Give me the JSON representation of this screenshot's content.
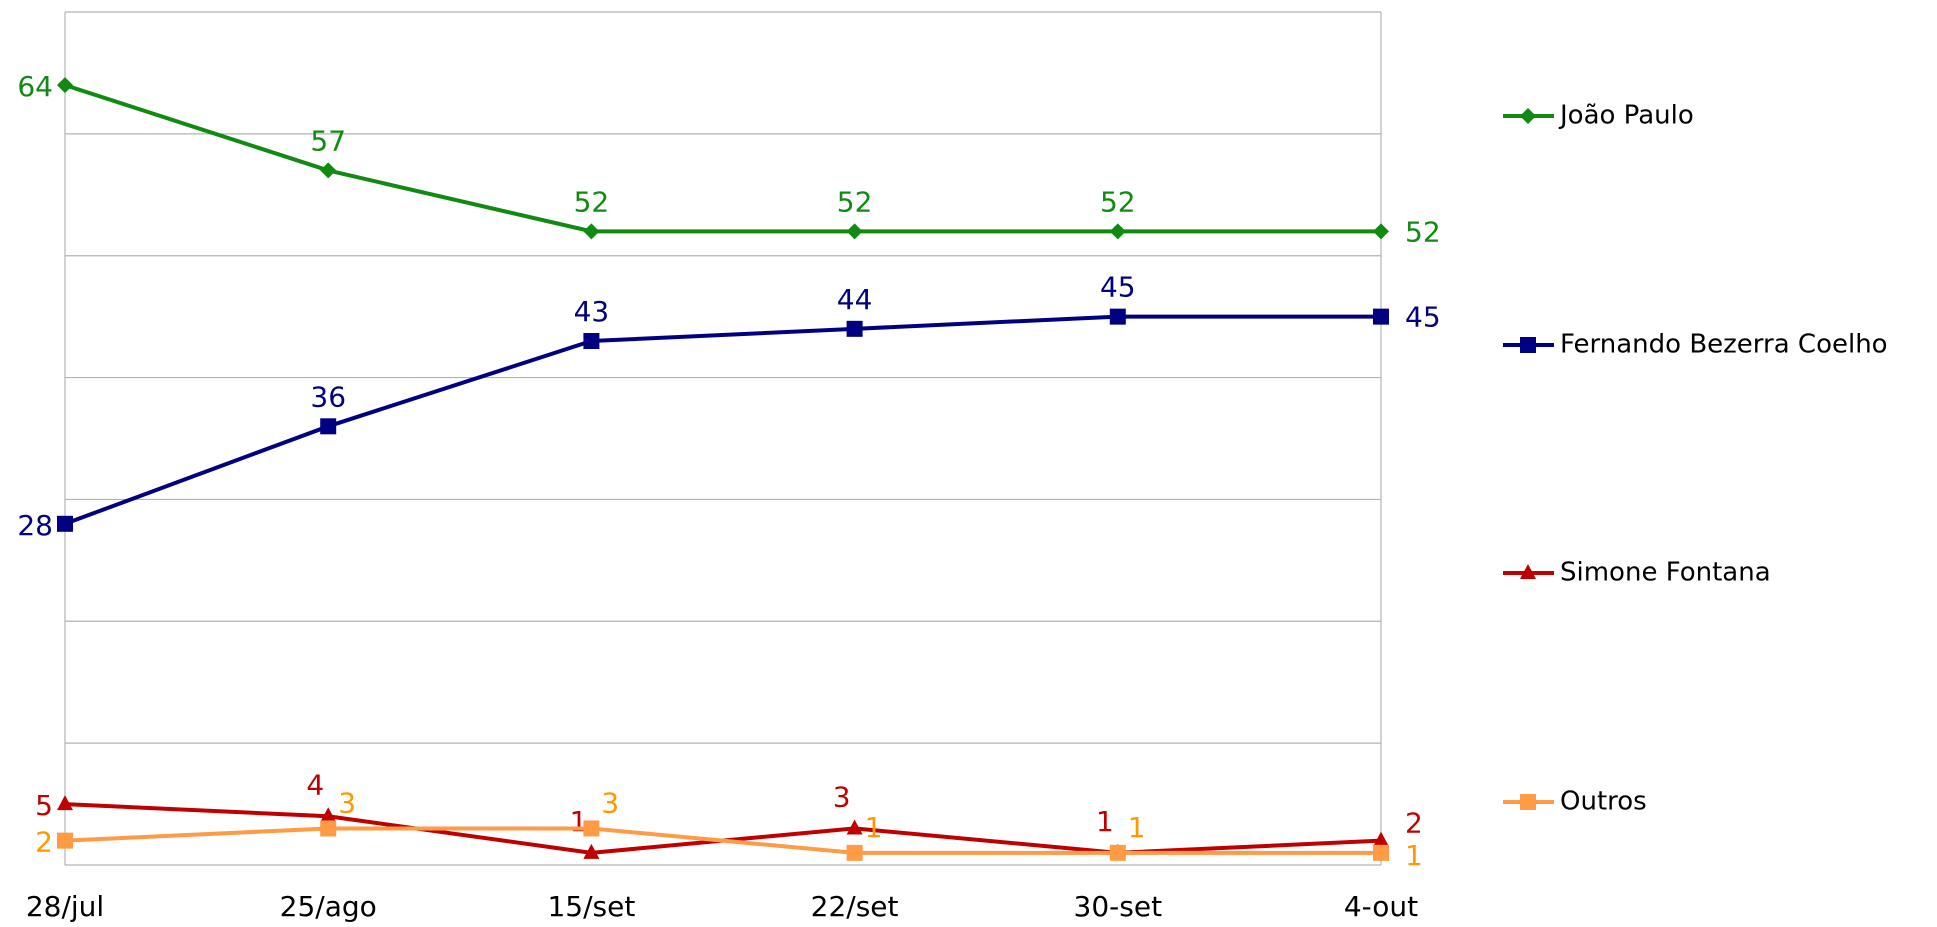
{
  "chart_data": {
    "type": "line",
    "categories": [
      "28/jul",
      "25/ago",
      "15/set",
      "22/set",
      "30-set",
      "4-out"
    ],
    "series": [
      {
        "name": "João Paulo",
        "color": "#118a11",
        "marker": "diamond",
        "values": [
          64,
          57,
          52,
          52,
          52,
          52
        ]
      },
      {
        "name": "Fernando Bezerra Coelho",
        "color": "#000080",
        "marker": "square",
        "values": [
          28,
          36,
          43,
          44,
          45,
          45
        ]
      },
      {
        "name": "Simone Fontana",
        "color": "#c00000",
        "marker": "triangle",
        "values": [
          5,
          4,
          1,
          3,
          1,
          2
        ]
      },
      {
        "name": "Outros",
        "color": "#ff9a45",
        "label_color": "#ff9900",
        "marker": "square",
        "values": [
          2,
          3,
          3,
          1,
          1,
          1
        ]
      }
    ],
    "ylim": [
      0,
      70
    ],
    "yticks": [
      0,
      10,
      20,
      30,
      40,
      50,
      60,
      70
    ],
    "grid": true,
    "legend": "right"
  }
}
